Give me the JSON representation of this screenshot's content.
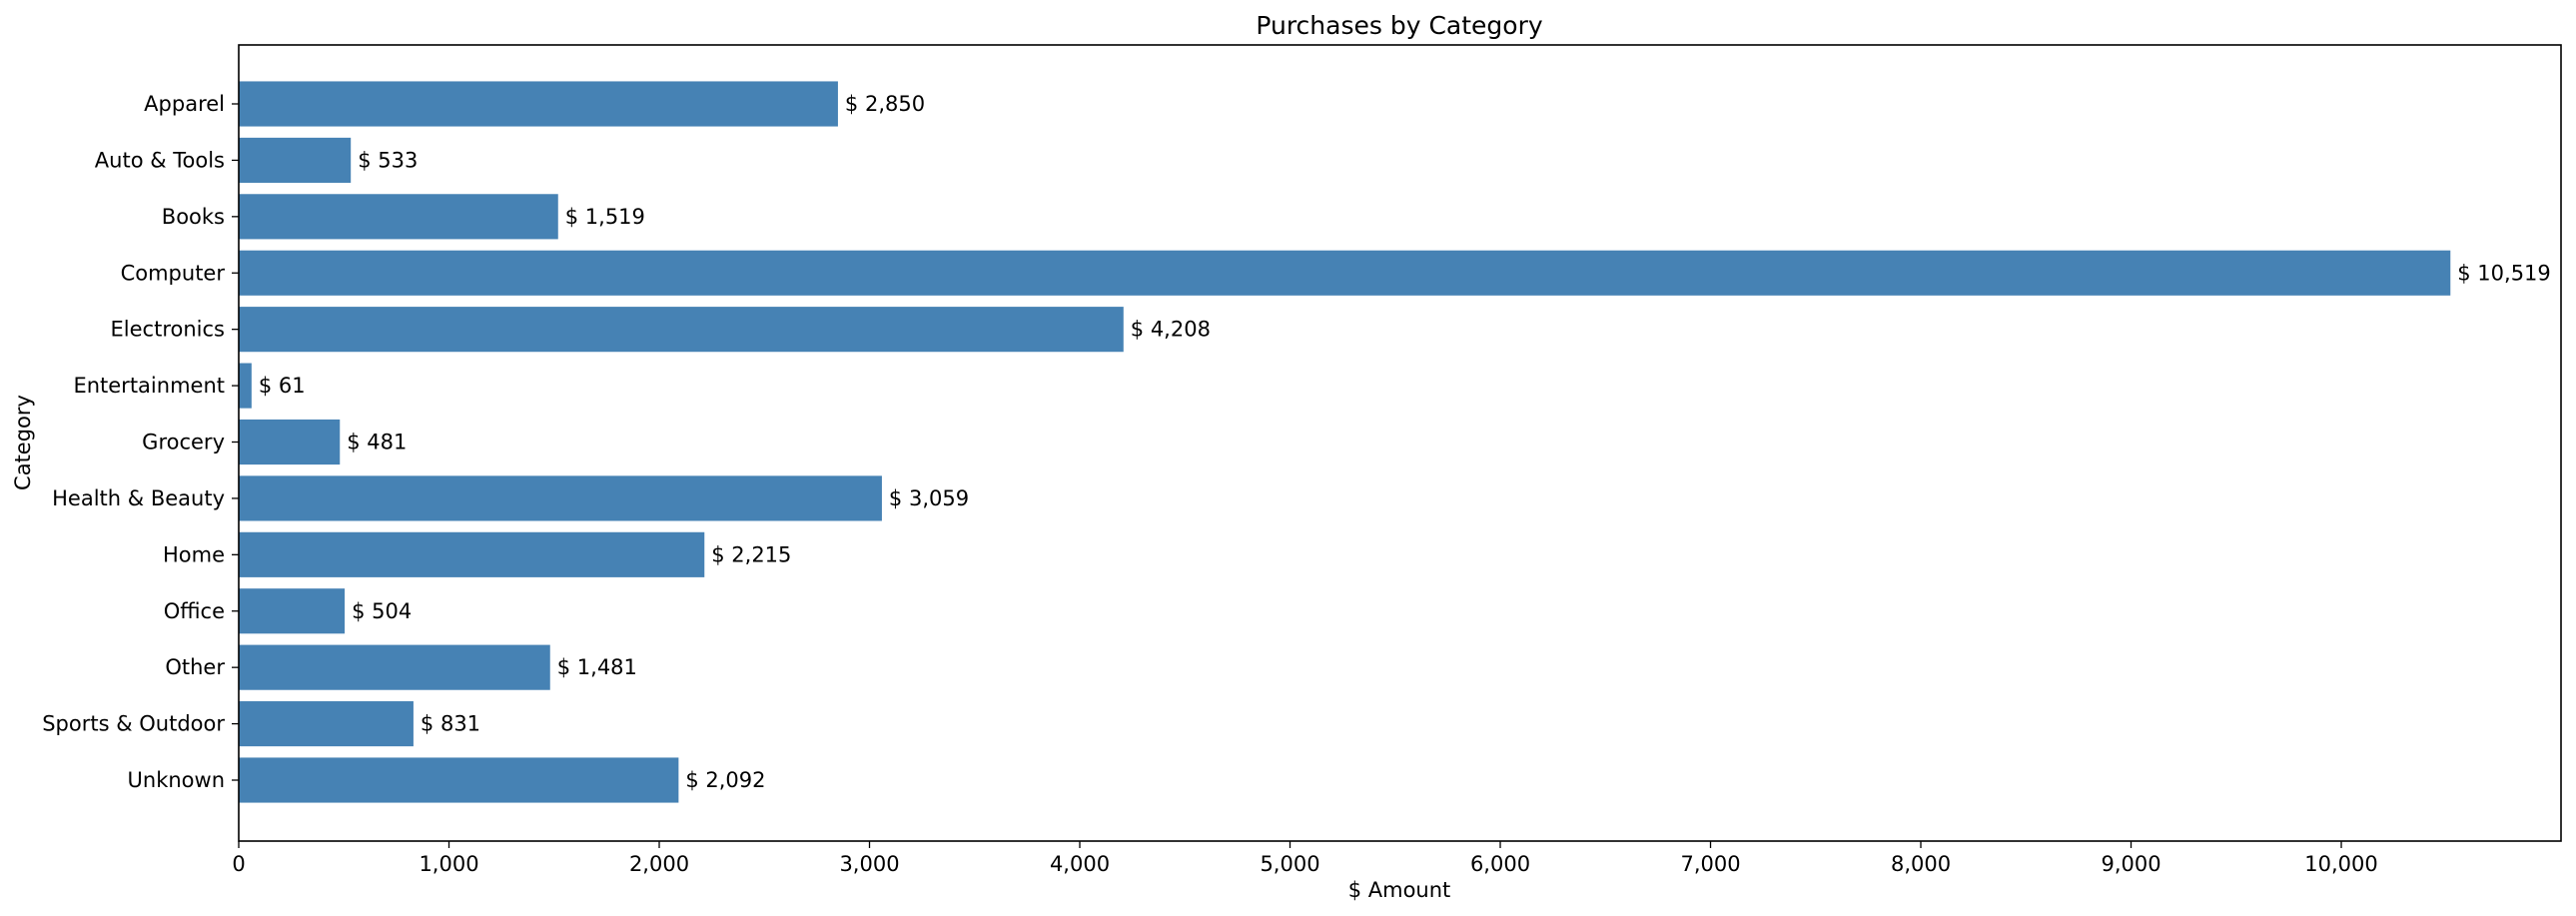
{
  "chart_data": {
    "type": "bar",
    "orientation": "horizontal",
    "title": "Purchases by Category",
    "xlabel": "$ Amount",
    "ylabel": "Category",
    "categories": [
      "Apparel",
      "Auto & Tools",
      "Books",
      "Computer",
      "Electronics",
      "Entertainment",
      "Grocery",
      "Health & Beauty",
      "Home",
      "Office",
      "Other",
      "Sports & Outdoor",
      "Unknown"
    ],
    "values": [
      2850,
      533,
      1519,
      10519,
      4208,
      61,
      481,
      3059,
      2215,
      504,
      1481,
      831,
      2092
    ],
    "value_labels": [
      "$ 2,850",
      "$ 533",
      "$ 1,519",
      "$ 10,519",
      "$ 4,208",
      "$ 61",
      "$ 481",
      "$ 3,059",
      "$ 2,215",
      "$ 504",
      "$ 1,481",
      "$ 831",
      "$ 2,092"
    ],
    "xlim": [
      0,
      11045
    ],
    "xticks": [
      0,
      1000,
      2000,
      3000,
      4000,
      5000,
      6000,
      7000,
      8000,
      9000,
      10000
    ],
    "xtick_labels": [
      "0",
      "1,000",
      "2,000",
      "3,000",
      "4,000",
      "5,000",
      "6,000",
      "7,000",
      "8,000",
      "9,000",
      "10,000"
    ],
    "grid": false,
    "legend": "none",
    "bar_color": "#4682b4"
  }
}
